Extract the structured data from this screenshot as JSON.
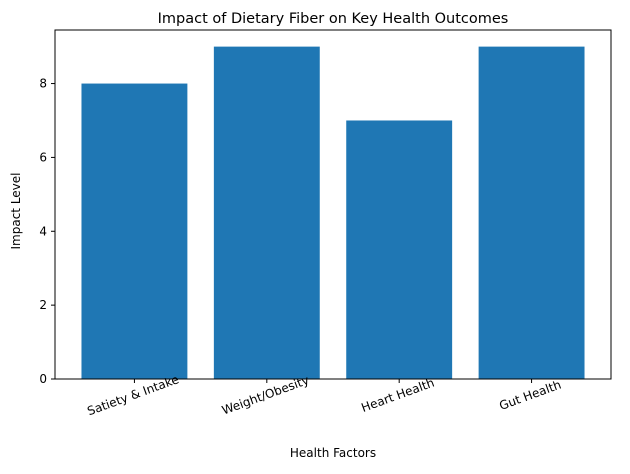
{
  "chart_data": {
    "type": "bar",
    "title": "Impact of Dietary Fiber on Key Health Outcomes",
    "xlabel": "Health Factors",
    "ylabel": "Impact Level",
    "categories": [
      "Satiety & Intake",
      "Weight/Obesity",
      "Heart Health",
      "Gut Health"
    ],
    "values": [
      8,
      9,
      7,
      9
    ],
    "ylim": [
      0,
      9.45
    ],
    "yticks": [
      0,
      2,
      4,
      6,
      8
    ],
    "bar_color": "#1f77b4",
    "grid": false,
    "legend": "none"
  }
}
